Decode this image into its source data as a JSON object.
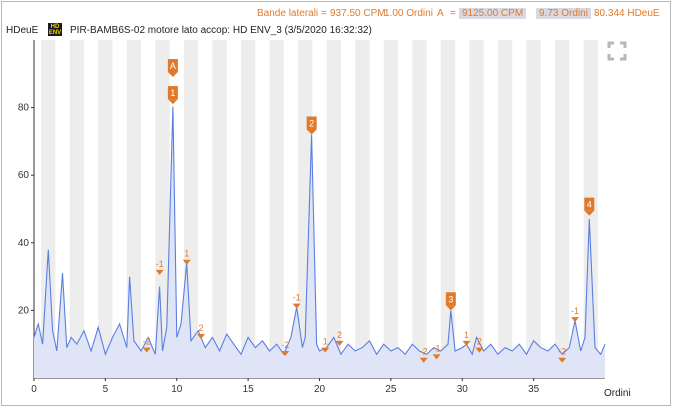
{
  "sideband_bar": {
    "label": "Bande laterali =",
    "cpm": "937.50 CPM",
    "orders": "1.00 Ordini",
    "a_label": "A",
    "eq": "=",
    "a_cpm": "9125.00 CPM",
    "a_orders": "9.73 Ordini",
    "a_amp": "80.344 HDeuE"
  },
  "header": {
    "unit": "HDeuE",
    "badge_top": "HD",
    "badge_bottom": "ENV",
    "title": "PIR-BAMB6S-02  motore lato accop: HD ENV_3 (3/5/2020 16:32:32)"
  },
  "colors": {
    "accent": "#e07a2a",
    "line": "#5b7fe0",
    "fill": "#dfe5f7",
    "band": "#ededed"
  },
  "icons": {
    "expand": "expand-icon"
  },
  "chart_data": {
    "type": "line",
    "ylabel": "HDeuE",
    "xlabel": "Ordini",
    "xlim": [
      0,
      40
    ],
    "ylim": [
      0,
      100
    ],
    "x_ticks": [
      "0",
      "5",
      "10",
      "15",
      "20",
      "25",
      "30",
      "35"
    ],
    "y_ticks": [
      "20",
      "40",
      "60",
      "80"
    ],
    "series": [
      {
        "x": [
          0,
          0.3,
          0.6,
          1.0,
          1.3,
          1.6,
          2.0,
          2.3,
          2.6,
          3.0,
          3.5,
          4.0,
          4.5,
          5.0,
          5.5,
          6.0,
          6.5,
          6.7,
          7.0,
          7.5,
          8.0,
          8.5,
          8.8,
          9.0,
          9.3,
          9.73,
          10.0,
          10.3,
          10.7,
          11.0,
          11.5,
          12.0,
          12.5,
          13.0,
          13.5,
          14.0,
          14.5,
          15.0,
          15.5,
          16.0,
          16.5,
          17.0,
          17.5,
          18.0,
          18.4,
          18.8,
          19.0,
          19.45,
          19.8,
          20.0,
          20.5,
          21.0,
          21.5,
          22.0,
          22.5,
          23.0,
          23.5,
          24.0,
          24.5,
          25.0,
          25.5,
          26.0,
          26.5,
          27.0,
          27.5,
          28.0,
          28.5,
          29.0,
          29.2,
          29.5,
          30.0,
          30.3,
          30.7,
          31.0,
          31.5,
          32.0,
          32.5,
          33.0,
          33.5,
          34.0,
          34.5,
          35.0,
          35.5,
          36.0,
          36.5,
          37.0,
          37.5,
          37.9,
          38.3,
          38.6,
          38.9,
          39.3,
          39.7,
          40.0
        ],
        "y": [
          12,
          16,
          10,
          38,
          14,
          8,
          31,
          9,
          12,
          10,
          14,
          8,
          15,
          7,
          12,
          16,
          9,
          30,
          11,
          8,
          12,
          7,
          27,
          8,
          15,
          80.3,
          12,
          16,
          34,
          11,
          14,
          9,
          12,
          8,
          13,
          10,
          7,
          12,
          9,
          11,
          8,
          10,
          7,
          12,
          21,
          9,
          12,
          72,
          10,
          8,
          9,
          12,
          7,
          10,
          8,
          9,
          11,
          7,
          10,
          8,
          9,
          7,
          10,
          8,
          7,
          9,
          8,
          10,
          20,
          8,
          9,
          10,
          7,
          12,
          8,
          10,
          7,
          9,
          8,
          10,
          7,
          11,
          9,
          8,
          10,
          7,
          9,
          17,
          8,
          12,
          47,
          9,
          7,
          10
        ]
      }
    ],
    "markers": [
      {
        "label": "-2",
        "x": 7.9,
        "y": 9
      },
      {
        "label": "-1",
        "x": 8.8,
        "y": 32
      },
      {
        "label": "1",
        "x": 9.73,
        "y": 84
      },
      {
        "label": "A",
        "x": 9.73,
        "y": 92
      },
      {
        "label": "1",
        "x": 10.7,
        "y": 35
      },
      {
        "label": "2",
        "x": 11.7,
        "y": 13
      },
      {
        "label": "-2",
        "x": 17.6,
        "y": 8
      },
      {
        "label": "-1",
        "x": 18.4,
        "y": 22
      },
      {
        "label": "2",
        "x": 19.45,
        "y": 75
      },
      {
        "label": "1",
        "x": 20.4,
        "y": 9
      },
      {
        "label": "2",
        "x": 21.4,
        "y": 11
      },
      {
        "label": "-2",
        "x": 27.3,
        "y": 6
      },
      {
        "label": "-1",
        "x": 28.2,
        "y": 7
      },
      {
        "label": "3",
        "x": 29.2,
        "y": 23
      },
      {
        "label": "1",
        "x": 30.3,
        "y": 11
      },
      {
        "label": "2",
        "x": 31.2,
        "y": 9
      },
      {
        "label": "-2",
        "x": 37.0,
        "y": 6
      },
      {
        "label": "-1",
        "x": 37.9,
        "y": 18
      },
      {
        "label": "4",
        "x": 38.9,
        "y": 51
      }
    ]
  }
}
